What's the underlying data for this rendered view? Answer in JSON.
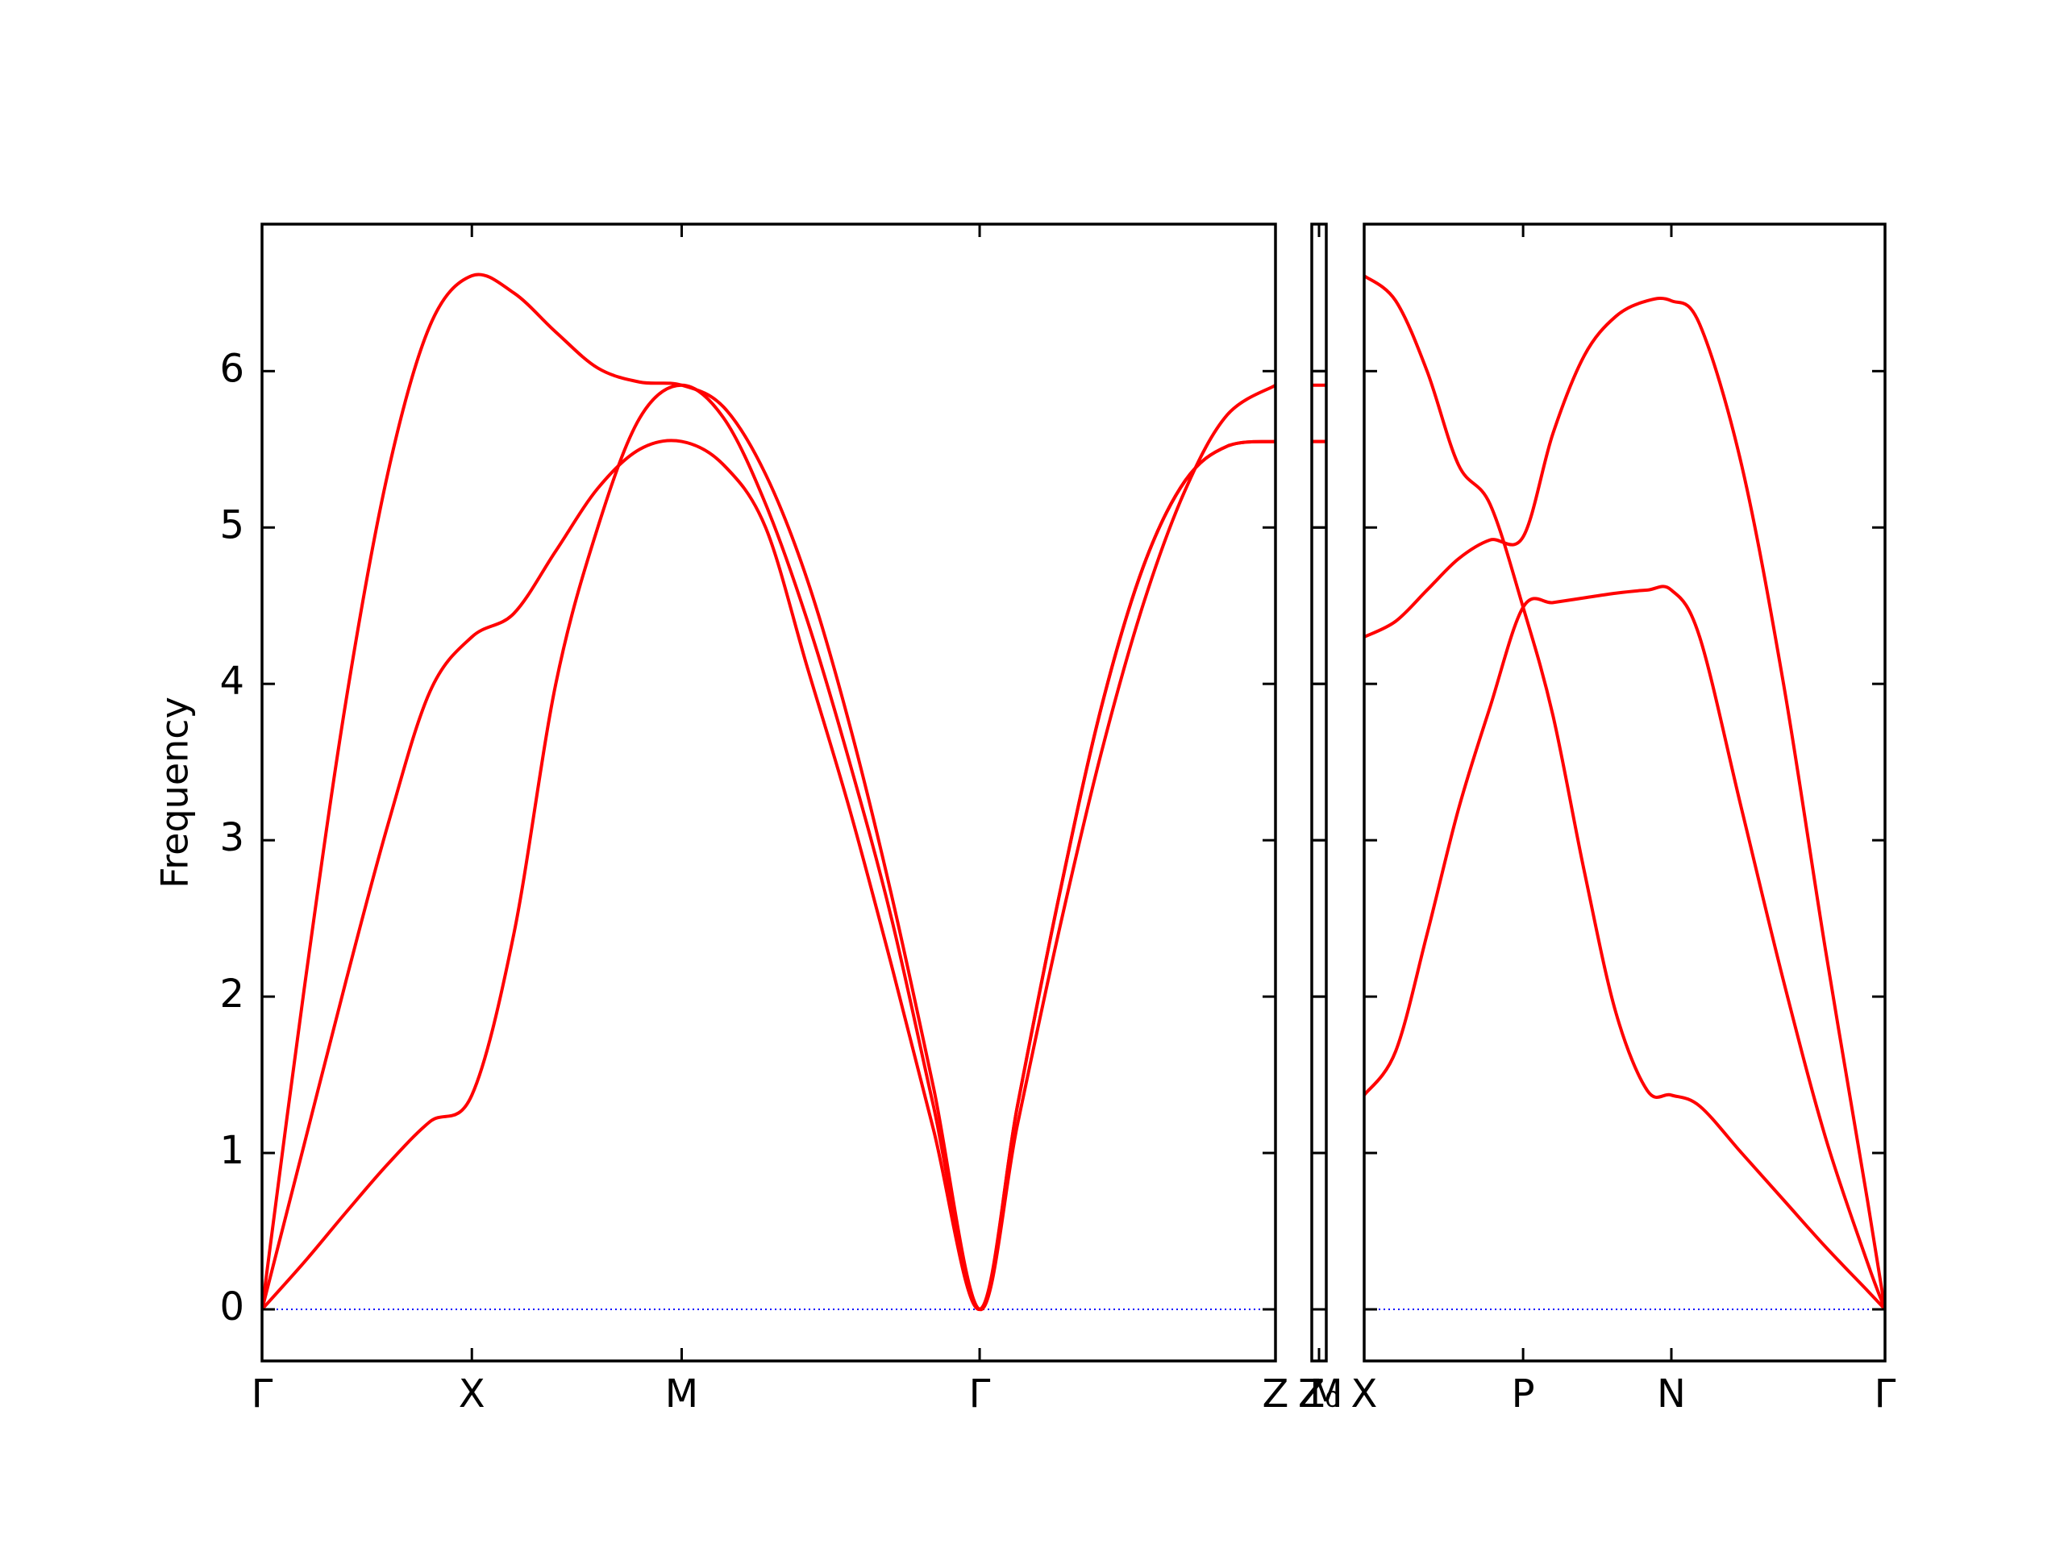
{
  "chart_data": [
    {
      "type": "line",
      "ylabel": "Frequency",
      "x": [
        0,
        0.2,
        0.4,
        0.6,
        0.8,
        1.0,
        1.2,
        1.4,
        1.6,
        1.8,
        2.0,
        2.2,
        2.4,
        2.6,
        2.8,
        3.0,
        3.2,
        3.42,
        3.6,
        3.8,
        4.0,
        4.2,
        4.4,
        4.6,
        4.83
      ],
      "xlim": [
        0,
        4.83
      ],
      "xticks": [
        {
          "value": 0,
          "label": "Γ"
        },
        {
          "value": 1,
          "label": "X"
        },
        {
          "value": 2,
          "label": "M"
        },
        {
          "value": 3.42,
          "label": "Γ"
        },
        {
          "value": 4.83,
          "label": "Z"
        }
      ],
      "ylim": [
        -0.33,
        6.94
      ],
      "yticks": [
        0,
        1,
        2,
        3,
        4,
        5,
        6
      ],
      "yticklabels": true,
      "hline": 0,
      "hline_color": "#0000ff",
      "series": [
        {
          "color": "#ff0000",
          "values": [
            0,
            2.04,
            3.89,
            5.35,
            6.29,
            6.61,
            6.5,
            6.25,
            6.02,
            5.93,
            5.91,
            5.77,
            5.34,
            4.66,
            3.74,
            2.65,
            1.42,
            0,
            1.18,
            2.43,
            3.56,
            4.51,
            5.24,
            5.72,
            5.91
          ]
        },
        {
          "color": "#ff0000",
          "values": [
            0,
            1.05,
            2.1,
            3.1,
            3.95,
            4.3,
            4.45,
            4.85,
            5.25,
            5.5,
            5.55,
            5.4,
            5.0,
            4.1,
            3.2,
            2.2,
            1.15,
            0,
            1.3,
            2.65,
            3.85,
            4.75,
            5.3,
            5.52,
            5.55
          ]
        },
        {
          "color": "#ff0000",
          "values": [
            0,
            0.3,
            0.62,
            0.93,
            1.2,
            1.37,
            2.4,
            4.0,
            5.0,
            5.7,
            5.91,
            5.7,
            5.15,
            4.4,
            3.5,
            2.5,
            1.3,
            0,
            1.3,
            2.65,
            3.85,
            4.75,
            5.3,
            5.52,
            5.55
          ]
        }
      ]
    },
    {
      "type": "line",
      "x": [
        0,
        1
      ],
      "xlim": [
        0,
        1
      ],
      "xticks": [
        {
          "value": 0,
          "label": "Z"
        },
        {
          "value": 0.5,
          "label": "Z₀"
        },
        {
          "value": 1,
          "label": "M"
        }
      ],
      "ylim": [
        -0.33,
        6.94
      ],
      "yticks": [
        0,
        1,
        2,
        3,
        4,
        5,
        6
      ],
      "yticklabels": false,
      "hline": 0,
      "hline_color": "#0000ff",
      "series": [
        {
          "color": "#ff0000",
          "values": [
            5.91,
            5.91
          ]
        },
        {
          "color": "#ff0000",
          "values": [
            5.55,
            5.55
          ]
        },
        {
          "color": "#ff0000",
          "values": [
            5.55,
            5.55
          ]
        }
      ]
    },
    {
      "type": "line",
      "x": [
        0,
        0.15,
        0.3,
        0.45,
        0.6,
        0.758,
        0.9,
        1.05,
        1.2,
        1.35,
        1.465,
        1.6,
        1.8,
        2.0,
        2.2,
        2.4,
        2.484
      ],
      "xlim": [
        0,
        2.484
      ],
      "xticks": [
        {
          "value": 0,
          "label": "X"
        },
        {
          "value": 0.758,
          "label": "P"
        },
        {
          "value": 1.465,
          "label": "N"
        },
        {
          "value": 2.484,
          "label": "Γ"
        }
      ],
      "ylim": [
        -0.33,
        6.94
      ],
      "yticks": [
        0,
        1,
        2,
        3,
        4,
        5,
        6
      ],
      "yticklabels": false,
      "hline": 0,
      "hline_color": "#0000ff",
      "series": [
        {
          "color": "#ff0000",
          "values": [
            6.61,
            6.45,
            6.0,
            5.4,
            5.15,
            4.49,
            3.8,
            2.8,
            1.9,
            1.4,
            1.37,
            1.3,
            1.0,
            0.7,
            0.4,
            0.12,
            0
          ]
        },
        {
          "color": "#ff0000",
          "values": [
            4.3,
            4.4,
            4.6,
            4.8,
            4.92,
            4.94,
            5.6,
            6.1,
            6.35,
            6.45,
            6.45,
            6.3,
            5.4,
            4.0,
            2.3,
            0.7,
            0
          ]
        },
        {
          "color": "#ff0000",
          "values": [
            1.37,
            1.65,
            2.4,
            3.2,
            3.85,
            4.49,
            4.52,
            4.55,
            4.58,
            4.6,
            4.6,
            4.3,
            3.2,
            2.1,
            1.1,
            0.3,
            0
          ]
        }
      ]
    }
  ]
}
